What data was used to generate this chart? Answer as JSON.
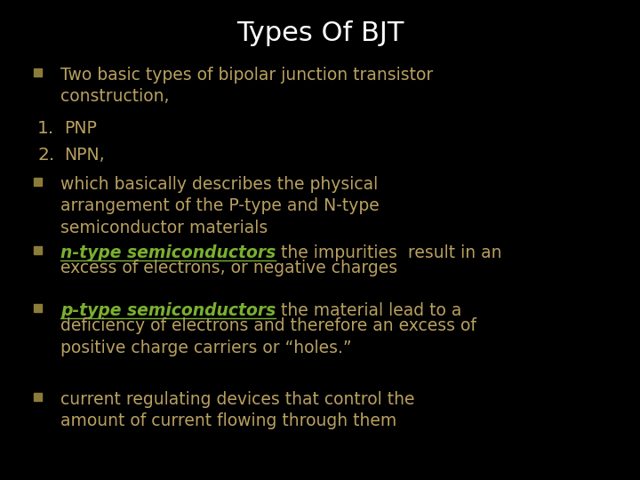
{
  "background_color": "#000000",
  "title": "Types Of BJT",
  "title_color": "#ffffff",
  "title_fontsize": 22,
  "bullet_square_color": "#8b7c3a",
  "number_color": "#b8a060",
  "text_color": "#b8a060",
  "green_color": "#7ab030",
  "lines": [
    {
      "type": "bullet",
      "segments": [
        {
          "text": "Two basic types of bipolar junction transistor\nconstruction,",
          "color": "#b8a060",
          "bold": false,
          "italic": false,
          "underline": false
        }
      ]
    },
    {
      "type": "numbered",
      "number": "1.",
      "segments": [
        {
          "text": "PNP",
          "color": "#b8a060",
          "bold": false,
          "italic": false,
          "underline": false
        }
      ]
    },
    {
      "type": "numbered",
      "number": "2.",
      "segments": [
        {
          "text": "NPN,",
          "color": "#b8a060",
          "bold": false,
          "italic": false,
          "underline": false
        }
      ]
    },
    {
      "type": "bullet",
      "segments": [
        {
          "text": "which basically describes the physical\narrangement of the P-type and N-type\nsemiconductor materials",
          "color": "#b8a060",
          "bold": false,
          "italic": false,
          "underline": false
        }
      ]
    },
    {
      "type": "bullet",
      "segments": [
        {
          "text": "n-type semiconductors",
          "color": "#7ab030",
          "bold": true,
          "italic": true,
          "underline": true
        },
        {
          "text": " the impurities  result in an\nexcess of electrons, or negative charges",
          "color": "#b8a060",
          "bold": false,
          "italic": false,
          "underline": false
        }
      ]
    },
    {
      "type": "bullet",
      "segments": [
        {
          "text": "p-type semiconductors",
          "color": "#7ab030",
          "bold": true,
          "italic": true,
          "underline": true
        },
        {
          "text": " the material lead to a\ndeficiency of electrons and therefore an excess of\npositive charge carriers or “holes.”",
          "color": "#b8a060",
          "bold": false,
          "italic": false,
          "underline": false
        }
      ]
    },
    {
      "type": "bullet",
      "segments": [
        {
          "text": "current regulating devices that control the\namount of current flowing through them",
          "color": "#b8a060",
          "bold": false,
          "italic": false,
          "underline": false
        }
      ]
    }
  ]
}
